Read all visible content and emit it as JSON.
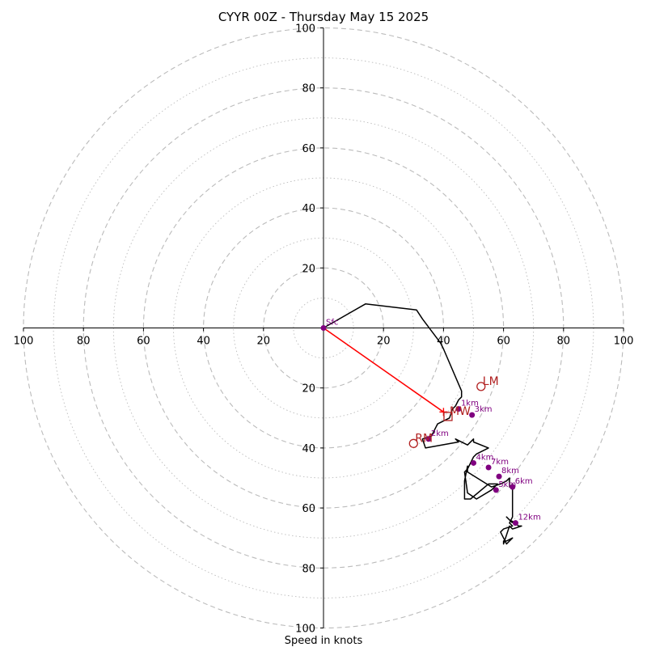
{
  "chart_data": {
    "type": "line",
    "title": "CYYR 00Z - Thursday May 15 2025",
    "xlabel": "Speed in knots",
    "range": 100,
    "rings": [
      10,
      20,
      30,
      40,
      50,
      60,
      70,
      80,
      90,
      100
    ],
    "tick_labels": [
      20,
      40,
      60,
      80,
      100
    ],
    "grid": true,
    "colors": {
      "hodograph": "#000000",
      "height_points": "#800080",
      "motion": "#b22222",
      "shear_line": "#ff0000",
      "grid": "#bbbbbb",
      "axes": "#000000"
    },
    "hodograph": {
      "u": [
        0,
        14,
        31,
        33,
        39,
        40,
        46,
        46,
        45,
        44,
        43,
        42,
        38,
        36,
        33,
        34,
        45,
        44,
        44,
        48,
        50,
        50,
        55,
        51,
        50,
        49,
        48,
        47,
        48,
        51,
        56,
        58,
        55,
        49,
        47,
        47,
        48,
        48,
        56,
        59,
        61,
        62,
        62,
        63,
        63,
        62,
        63,
        60,
        59,
        61,
        63,
        61,
        60,
        60,
        62,
        63,
        66,
        65,
        64,
        62,
        61,
        63
      ],
      "v": [
        0,
        8,
        6,
        3,
        -5,
        -7,
        -21,
        -23,
        -24,
        -26,
        -27,
        -30,
        -32,
        -36,
        -37,
        -40,
        -38,
        -37,
        -37,
        -39,
        -37,
        -38,
        -40,
        -42,
        -43,
        -45,
        -47,
        -48,
        -55,
        -57,
        -54,
        -52,
        -52,
        -57,
        -57,
        -51,
        -46,
        -48,
        -53,
        -52,
        -51,
        -50,
        -53,
        -52,
        -63,
        -65,
        -66,
        -67,
        -68,
        -72,
        -70,
        -71,
        -71,
        -72,
        -66,
        -67,
        -66,
        -66,
        -65,
        -64,
        -63,
        -65
      ]
    },
    "height_markers": [
      {
        "label": "Sfc",
        "u": 0,
        "v": 0
      },
      {
        "label": "1km",
        "u": 45,
        "v": -27
      },
      {
        "label": "2km",
        "u": 35,
        "v": -37
      },
      {
        "label": "3km",
        "u": 49.5,
        "v": -29
      },
      {
        "label": "4km",
        "u": 50,
        "v": -45
      },
      {
        "label": "5km",
        "u": 57.5,
        "v": -54
      },
      {
        "label": "6km",
        "u": 63,
        "v": -53
      },
      {
        "label": "7km",
        "u": 55,
        "v": -46.5
      },
      {
        "label": "8km",
        "u": 58.5,
        "v": -49.5
      },
      {
        "label": "12km",
        "u": 64,
        "v": -65
      }
    ],
    "storm_motion": [
      {
        "label": "LM",
        "u": 52.5,
        "v": -19.5,
        "marker": "circle"
      },
      {
        "label": "RM",
        "u": 30,
        "v": -38.5,
        "marker": "circle"
      },
      {
        "label": "MW",
        "u": 41.5,
        "v": -29.5,
        "marker": "square"
      }
    ],
    "shear_vector": {
      "from_u": 0,
      "from_v": 0,
      "to_u": 40,
      "to_v": -28
    }
  }
}
